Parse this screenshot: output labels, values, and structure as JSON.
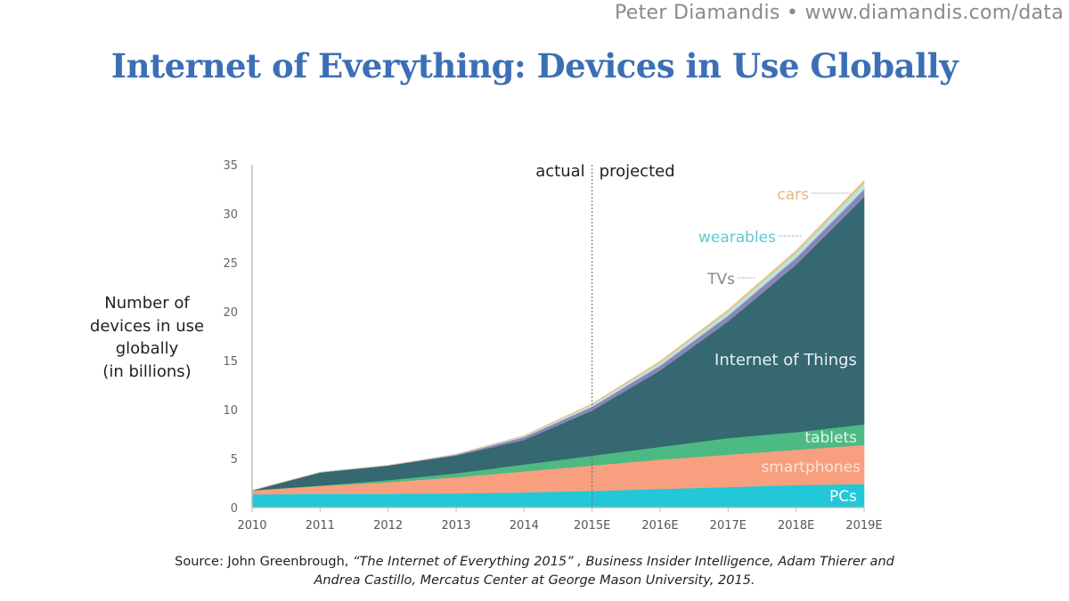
{
  "header": {
    "author": "Peter Diamandis",
    "separator": "•",
    "site": "www.diamandis.com/data"
  },
  "title": "Internet of Everything: Devices in Use Globally",
  "ylabel_lines": [
    "Number of",
    "devices in use",
    "globally",
    "(in billions)"
  ],
  "source": {
    "prefix": "Source: John Greenbrough, ",
    "line1_italic": "“The Internet of Everything 2015” , Business Insider Intelligence, Adam Thierer and",
    "line2_italic": "Andrea Castillo, Mercatus Center at George Mason University, 2015."
  },
  "chart_data": {
    "type": "area",
    "stacked": true,
    "title": "Internet of Everything: Devices in Use Globally",
    "ylabel": "Number of devices in use globally (in billions)",
    "xlabel": "",
    "categories": [
      "2010",
      "2011",
      "2012",
      "2013",
      "2014",
      "2015E",
      "2016E",
      "2017E",
      "2018E",
      "2019E"
    ],
    "ylim": [
      0,
      35
    ],
    "yticks": [
      0,
      5,
      10,
      15,
      20,
      25,
      30,
      35
    ],
    "grid": false,
    "divider": {
      "at": "2015E",
      "left_label": "actual",
      "right_label": "projected"
    },
    "series": [
      {
        "name": "PCs",
        "color": "#22c8d8",
        "values": [
          1.35,
          1.4,
          1.4,
          1.45,
          1.55,
          1.7,
          1.9,
          2.1,
          2.3,
          2.4
        ]
      },
      {
        "name": "smartphones",
        "color": "#f79f7e",
        "values": [
          0.4,
          0.8,
          1.2,
          1.65,
          2.15,
          2.6,
          3.0,
          3.3,
          3.6,
          4.0
        ]
      },
      {
        "name": "tablets",
        "color": "#4cba82",
        "values": [
          0,
          0.05,
          0.2,
          0.4,
          0.7,
          1.0,
          1.3,
          1.7,
          1.8,
          2.1
        ]
      },
      {
        "name": "Internet of Things",
        "color": "#356870",
        "values": [
          0,
          1.35,
          1.5,
          1.8,
          2.5,
          4.6,
          7.8,
          11.9,
          17.1,
          23.2
        ]
      },
      {
        "name": "TVs",
        "color": "#8a86b5",
        "values": [
          0,
          0,
          0,
          0.1,
          0.3,
          0.4,
          0.5,
          0.6,
          0.7,
          0.8
        ]
      },
      {
        "name": "wearables",
        "color": "#b9e4e4",
        "values": [
          0,
          0,
          0,
          0.05,
          0.1,
          0.2,
          0.3,
          0.4,
          0.5,
          0.6
        ]
      },
      {
        "name": "cars",
        "color": "#e6c48a",
        "values": [
          0,
          0,
          0,
          0,
          0.05,
          0.1,
          0.15,
          0.2,
          0.25,
          0.3
        ]
      }
    ]
  }
}
